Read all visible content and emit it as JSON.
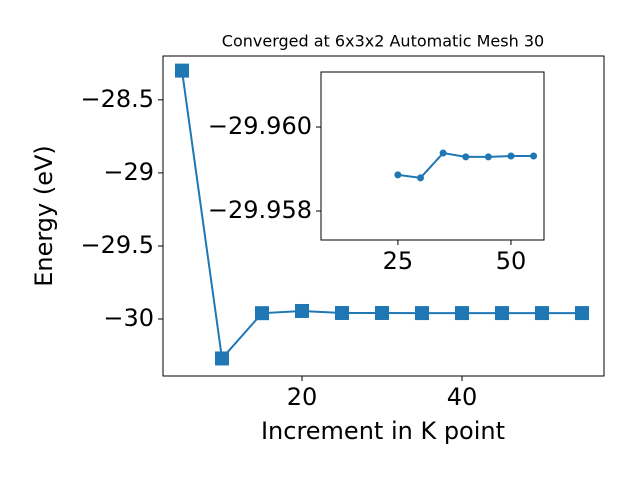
{
  "chart_data": [
    {
      "type": "line",
      "title": "Converged at 6x3x2 Automatic Mesh 30",
      "xlabel": "Increment in K point",
      "ylabel": "Energy (eV)",
      "x": [
        5,
        10,
        15,
        20,
        25,
        30,
        35,
        40,
        45,
        50,
        55
      ],
      "values": [
        -28.3,
        -30.27,
        -29.96,
        -29.945,
        -29.9589,
        -29.9588,
        -29.9594,
        -29.9593,
        -29.9593,
        -29.9593,
        -29.9593
      ],
      "color": "#1f77b4",
      "marker": "square",
      "xlim": [
        2.625,
        57.75
      ],
      "ylim": [
        -30.39,
        -28.2
      ],
      "xticks": [
        20,
        40
      ],
      "yticks": [
        -30.0,
        -29.5,
        -29.0,
        -28.5
      ]
    },
    {
      "type": "line",
      "x": [
        25,
        30,
        35,
        40,
        45,
        50,
        55
      ],
      "values": [
        -29.95886,
        -29.95879,
        -29.95938,
        -29.95929,
        -29.95929,
        -29.95931,
        -29.95931
      ],
      "color": "#1f77b4",
      "marker": "circle",
      "xlim": [
        8.0,
        57.3
      ],
      "ylim": [
        -29.95731,
        -29.96131
      ],
      "xticks": [
        25,
        50
      ],
      "yticks": [
        {
          "value": -29.958,
          "label": "−29.958"
        },
        {
          "value": -29.96,
          "label": "−29.960"
        }
      ]
    }
  ]
}
